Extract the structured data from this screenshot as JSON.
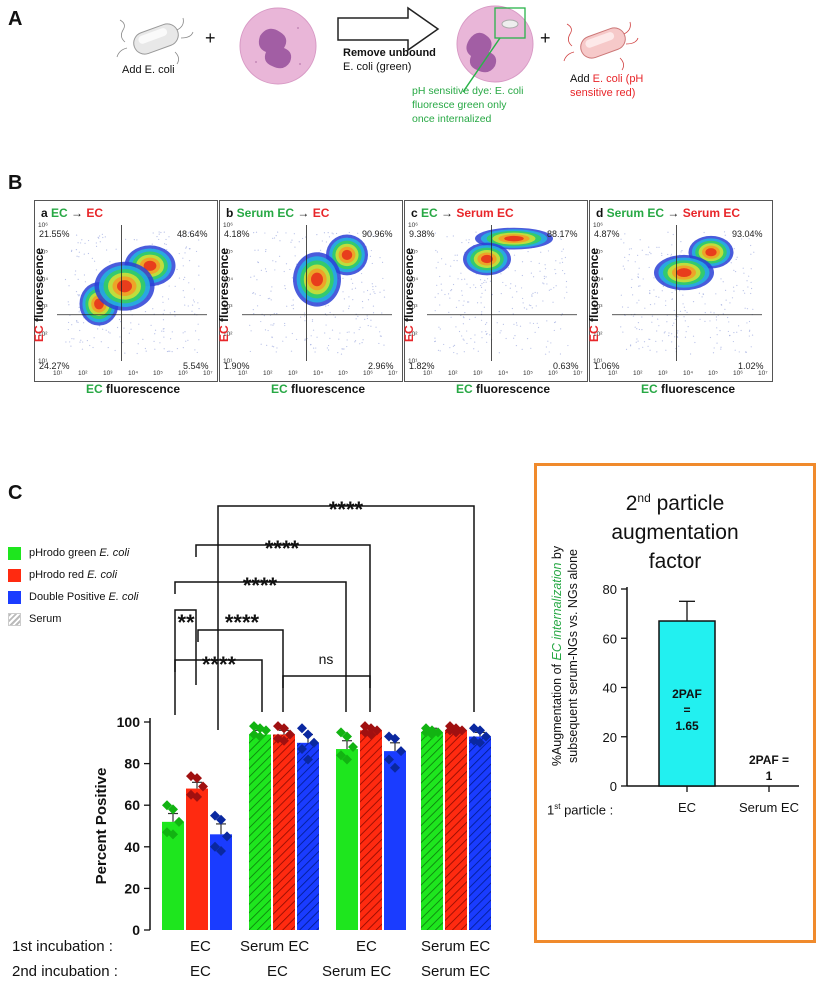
{
  "panel_a": {
    "letter": "A",
    "add_ecoli_label": "Add E. coli",
    "plus_1": "+",
    "plus_2": "+",
    "arrow_title": "Remove unbound",
    "arrow_subtitle": "E. coli (green)",
    "dye_note_lines": [
      "pH sensitive dye: E. coli",
      "fluoresce green only",
      "once internalized"
    ],
    "add_red_prefix": "Add ",
    "add_red_text": "E. coli (pH",
    "add_red_line2": "sensitive red)"
  },
  "panel_b": {
    "letter": "B",
    "axis_ec": "EC",
    "axis_word": "fluorescence",
    "arrow": "→",
    "plots": [
      {
        "idx": "a",
        "first": "EC",
        "second": "EC",
        "tl": "21.55%",
        "tr": "48.64%",
        "bl": "24.27%",
        "br": "5.54%"
      },
      {
        "idx": "b",
        "first": "Serum EC",
        "second": "EC",
        "tl": "4.18%",
        "tr": "90.96%",
        "bl": "1.90%",
        "br": "2.96%"
      },
      {
        "idx": "c",
        "first": "EC",
        "second": "Serum EC",
        "tl": "9.38%",
        "tr": "88.17%",
        "bl": "1.82%",
        "br": "0.63%"
      },
      {
        "idx": "d",
        "first": "Serum EC",
        "second": "Serum EC",
        "tl": "4.87%",
        "tr": "93.04%",
        "bl": "1.06%",
        "br": "1.02%"
      }
    ],
    "x_ticks": [
      "10¹",
      "10²",
      "10³",
      "10⁴",
      "10⁵",
      "10⁶",
      "10⁷"
    ],
    "y_ticks": [
      "10¹",
      "10²",
      "10³",
      "10⁴",
      "10⁵",
      "10⁶"
    ]
  },
  "panel_c": {
    "letter": "C",
    "legend": [
      {
        "label_prefix": "pHrodo green ",
        "label_italic": "E. coli",
        "color": "#1ee61e"
      },
      {
        "label_prefix": "pHrodo red ",
        "label_italic": "E. coli",
        "color": "#ff2a10"
      },
      {
        "label_prefix": "Double Positive ",
        "label_italic": "E. coli",
        "color": "#1a3cff"
      },
      {
        "label_prefix": "Serum",
        "label_italic": "",
        "color": "#cccccc"
      }
    ],
    "first_incubation_label": "1st incubation :",
    "second_incubation_label": "2nd incubation :",
    "first_incubation": [
      "EC",
      "Serum EC",
      "EC",
      "Serum EC"
    ],
    "second_incubation": [
      "EC",
      "EC",
      "Serum EC",
      "Serum EC"
    ],
    "significance": [
      "**",
      "****",
      "****",
      "****",
      "****",
      "****",
      "ns"
    ]
  },
  "augmentation": {
    "title_line1_prefix": "2",
    "title_line1_sup": "nd",
    "title_line1_rest": " particle",
    "title_line2": "augmentation",
    "title_line3": "factor",
    "ylabel_prefix": "%Augmentation of ",
    "ylabel_italic": "EC internalization",
    "ylabel_suffix": " by",
    "ylabel_line2": "subsequent serum-NGs vs. NGs alone",
    "first_particle_label": "1st particle :",
    "bar_annotation_1": [
      "2PAF",
      "=",
      "1.65"
    ],
    "bar_annotation_2": [
      "2PAF =",
      "1"
    ]
  },
  "chart_data": [
    {
      "type": "bar",
      "title": "",
      "ylabel": "Percent Positive",
      "ylim": [
        0,
        100
      ],
      "yticks": [
        0,
        20,
        40,
        60,
        80,
        100
      ],
      "categories": [
        "EC/EC",
        "Serum EC/EC",
        "EC/Serum EC",
        "Serum EC/Serum EC"
      ],
      "series": [
        {
          "name": "pHrodo green E. coli",
          "color": "#1ee61e",
          "values": [
            52,
            94,
            87,
            95
          ],
          "errors": [
            4,
            2,
            4,
            2
          ],
          "points": [
            [
              60,
              58,
              52,
              47,
              46
            ],
            [
              98,
              97,
              96,
              94,
              93
            ],
            [
              95,
              93,
              88,
              84,
              82
            ],
            [
              97,
              96,
              95,
              95,
              94
            ]
          ]
        },
        {
          "name": "pHrodo red E. coli",
          "color": "#ff2a10",
          "values": [
            68,
            94,
            96,
            96
          ],
          "errors": [
            3,
            2,
            1,
            1
          ],
          "points": [
            [
              74,
              73,
              69,
              65,
              64
            ],
            [
              98,
              97,
              94,
              92,
              91
            ],
            [
              98,
              97,
              96,
              95,
              94
            ],
            [
              98,
              97,
              96,
              96,
              95
            ]
          ]
        },
        {
          "name": "Double Positive E. coli",
          "color": "#1a3cff",
          "values": [
            46,
            90,
            86,
            93
          ],
          "errors": [
            5,
            4,
            4,
            2
          ],
          "points": [
            [
              55,
              53,
              45,
              40,
              38
            ],
            [
              97,
              94,
              90,
              87,
              82
            ],
            [
              93,
              92,
              86,
              82,
              78
            ],
            [
              97,
              96,
              93,
              91,
              90
            ]
          ]
        }
      ],
      "serum_hatched": [
        false,
        true,
        false,
        true
      ]
    },
    {
      "type": "bar",
      "title": "2nd particle augmentation factor",
      "ylabel": "%Augmentation of EC internalization by subsequent serum-NGs vs. NGs alone",
      "xlabel": "1st particle",
      "categories": [
        "EC",
        "Serum EC"
      ],
      "values": [
        67,
        0
      ],
      "errors": [
        8,
        0
      ],
      "ylim": [
        0,
        80
      ],
      "yticks": [
        0,
        20,
        40,
        60,
        80
      ],
      "color": "#22f0f0"
    }
  ]
}
